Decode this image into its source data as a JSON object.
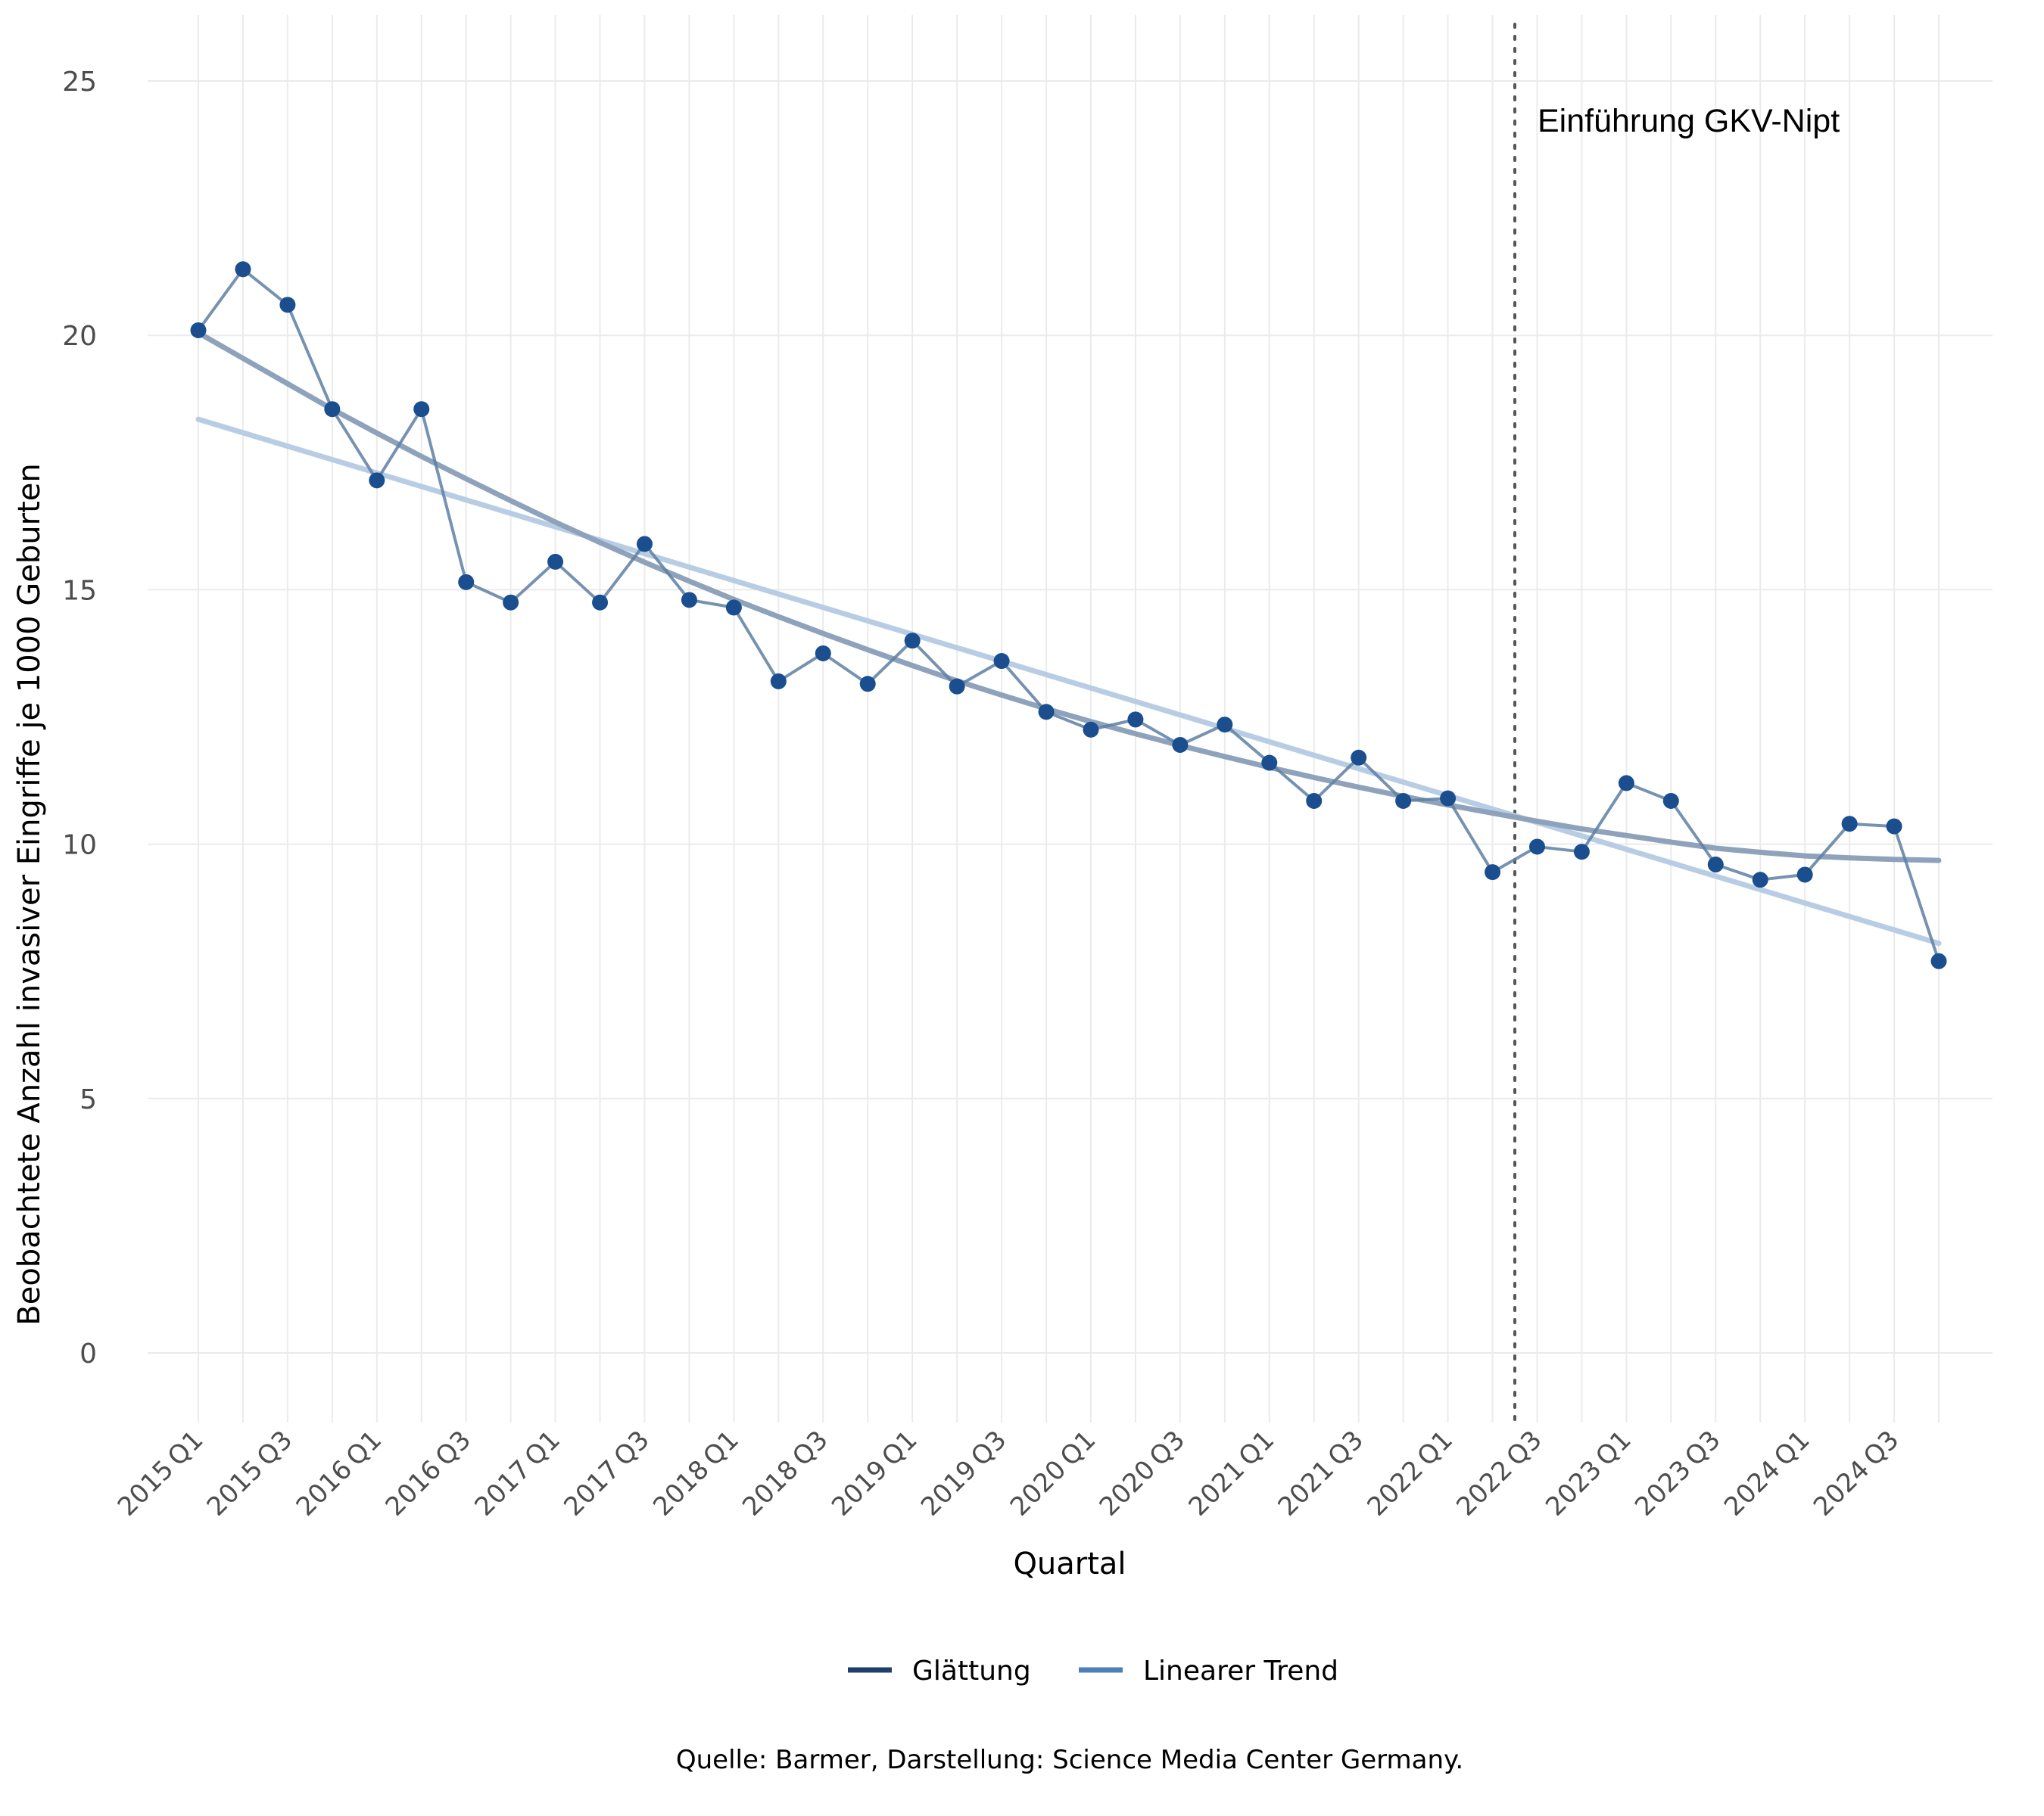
{
  "chart_data": {
    "type": "line",
    "title": "",
    "xlabel": "Quartal",
    "ylabel": "Beobachtete Anzahl invasiver Eingriffe je 1000 Geburten",
    "ylim": [
      -1.2,
      26.2
    ],
    "yticks": [
      0,
      5,
      10,
      15,
      20,
      25
    ],
    "grid": true,
    "legend_position": "bottom",
    "categories": [
      "2015 Q1",
      "2015 Q2",
      "2015 Q3",
      "2015 Q4",
      "2016 Q1",
      "2016 Q2",
      "2016 Q3",
      "2016 Q4",
      "2017 Q1",
      "2017 Q2",
      "2017 Q3",
      "2017 Q4",
      "2018 Q1",
      "2018 Q2",
      "2018 Q3",
      "2018 Q4",
      "2019 Q1",
      "2019 Q2",
      "2019 Q3",
      "2019 Q4",
      "2020 Q1",
      "2020 Q2",
      "2020 Q3",
      "2020 Q4",
      "2021 Q1",
      "2021 Q2",
      "2021 Q3",
      "2021 Q4",
      "2022 Q1",
      "2022 Q2",
      "2022 Q3",
      "2022 Q4",
      "2023 Q1",
      "2023 Q2",
      "2023 Q3",
      "2023 Q4",
      "2024 Q1",
      "2024 Q2",
      "2024 Q3",
      "2024 Q4"
    ],
    "x_tick_labels": [
      "2015 Q1",
      "2015 Q3",
      "2016 Q1",
      "2016 Q3",
      "2017 Q1",
      "2017 Q3",
      "2018 Q1",
      "2018 Q3",
      "2019 Q1",
      "2019 Q3",
      "2020 Q1",
      "2020 Q3",
      "2021 Q1",
      "2021 Q3",
      "2022 Q1",
      "2022 Q3",
      "2023 Q1",
      "2023 Q3",
      "2024 Q1",
      "2024 Q3"
    ],
    "observed": [
      20.1,
      21.3,
      20.6,
      18.55,
      17.15,
      18.55,
      15.15,
      14.75,
      15.55,
      14.75,
      15.9,
      14.8,
      14.65,
      13.2,
      13.75,
      13.15,
      14.0,
      13.1,
      13.6,
      12.6,
      12.25,
      12.45,
      11.95,
      12.35,
      11.6,
      10.85,
      11.7,
      10.85,
      10.9,
      9.45,
      9.95,
      9.85,
      11.2,
      10.85,
      9.6,
      9.3,
      9.4,
      10.4,
      10.35,
      7.7
    ],
    "series": [
      {
        "name": "Glättung",
        "color": "#1f3f6a",
        "values": [
          20.05,
          19.55,
          19.05,
          18.55,
          18.08,
          17.62,
          17.18,
          16.75,
          16.33,
          15.93,
          15.54,
          15.17,
          14.81,
          14.47,
          14.14,
          13.82,
          13.51,
          13.21,
          12.93,
          12.66,
          12.41,
          12.17,
          11.94,
          11.72,
          11.51,
          11.31,
          11.12,
          10.94,
          10.77,
          10.61,
          10.45,
          10.3,
          10.17,
          10.04,
          9.92,
          9.84,
          9.77,
          9.73,
          9.7,
          9.68
        ]
      },
      {
        "name": "Linearer Trend",
        "color": "#4d7fb7",
        "start": 18.35,
        "end": 8.05
      }
    ],
    "annotation": {
      "label": "Einführung GKV-Nipt",
      "x_index": 29.5
    },
    "colors": {
      "observed_line": "#5e7fa3",
      "observed_point": "#1a4e8e",
      "smooth_line": "#8ea3bb",
      "linear_line": "#b8cde4",
      "grid": "#ebebeb",
      "annotation_line": "#555555"
    }
  },
  "caption": "Quelle: Barmer, Darstellung: Science Media Center Germany."
}
